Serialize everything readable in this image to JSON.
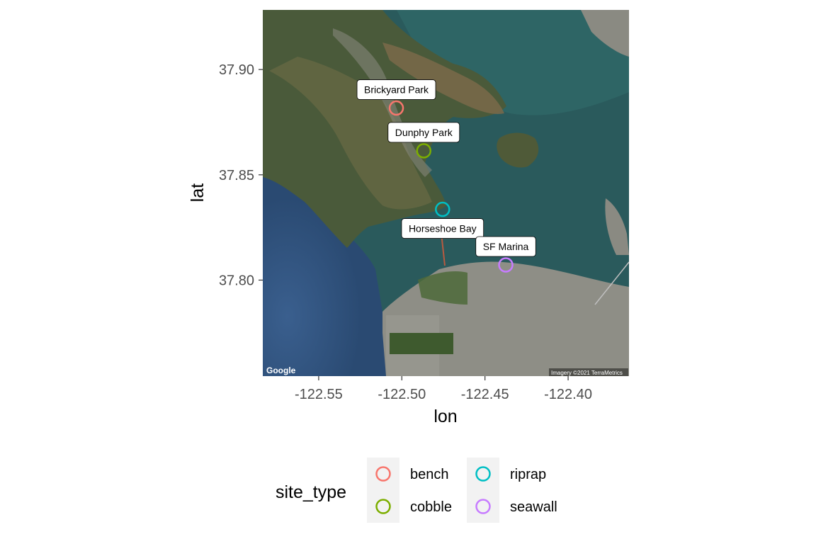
{
  "plot": {
    "x_axis_title": "lon",
    "y_axis_title": "lat",
    "x_ticks": [
      {
        "label": "-122.55",
        "value": -122.55
      },
      {
        "label": "-122.50",
        "value": -122.5
      },
      {
        "label": "-122.45",
        "value": -122.45
      },
      {
        "label": "-122.40",
        "value": -122.4
      }
    ],
    "y_ticks": [
      {
        "label": "37.90",
        "value": 37.9
      },
      {
        "label": "37.85",
        "value": 37.85
      },
      {
        "label": "37.80",
        "value": 37.8
      }
    ],
    "xlim": [
      -122.5836,
      -122.3634
    ],
    "ylim": [
      37.7544,
      37.9283
    ]
  },
  "sites": [
    {
      "name": "Brickyard Park",
      "type": "bench",
      "lon": -122.5033,
      "lat": 37.8817,
      "label_pos": "above"
    },
    {
      "name": "Dunphy Park",
      "type": "cobble",
      "lon": -122.4868,
      "lat": 37.8614,
      "label_pos": "above"
    },
    {
      "name": "Horseshoe Bay",
      "type": "riprap",
      "lon": -122.4755,
      "lat": 37.8336,
      "label_pos": "below"
    },
    {
      "name": "SF Marina",
      "type": "seawall",
      "lon": -122.4375,
      "lat": 37.8072,
      "label_pos": "above"
    }
  ],
  "legend": {
    "title": "site_type",
    "items": [
      {
        "label": "bench",
        "color": "#F8766D"
      },
      {
        "label": "cobble",
        "color": "#7CAE00"
      },
      {
        "label": "riprap",
        "color": "#00BFC4"
      },
      {
        "label": "seawall",
        "color": "#C77CFF"
      }
    ]
  },
  "map": {
    "logo": "Google",
    "attribution": "Imagery ©2021 TerraMetrics"
  }
}
